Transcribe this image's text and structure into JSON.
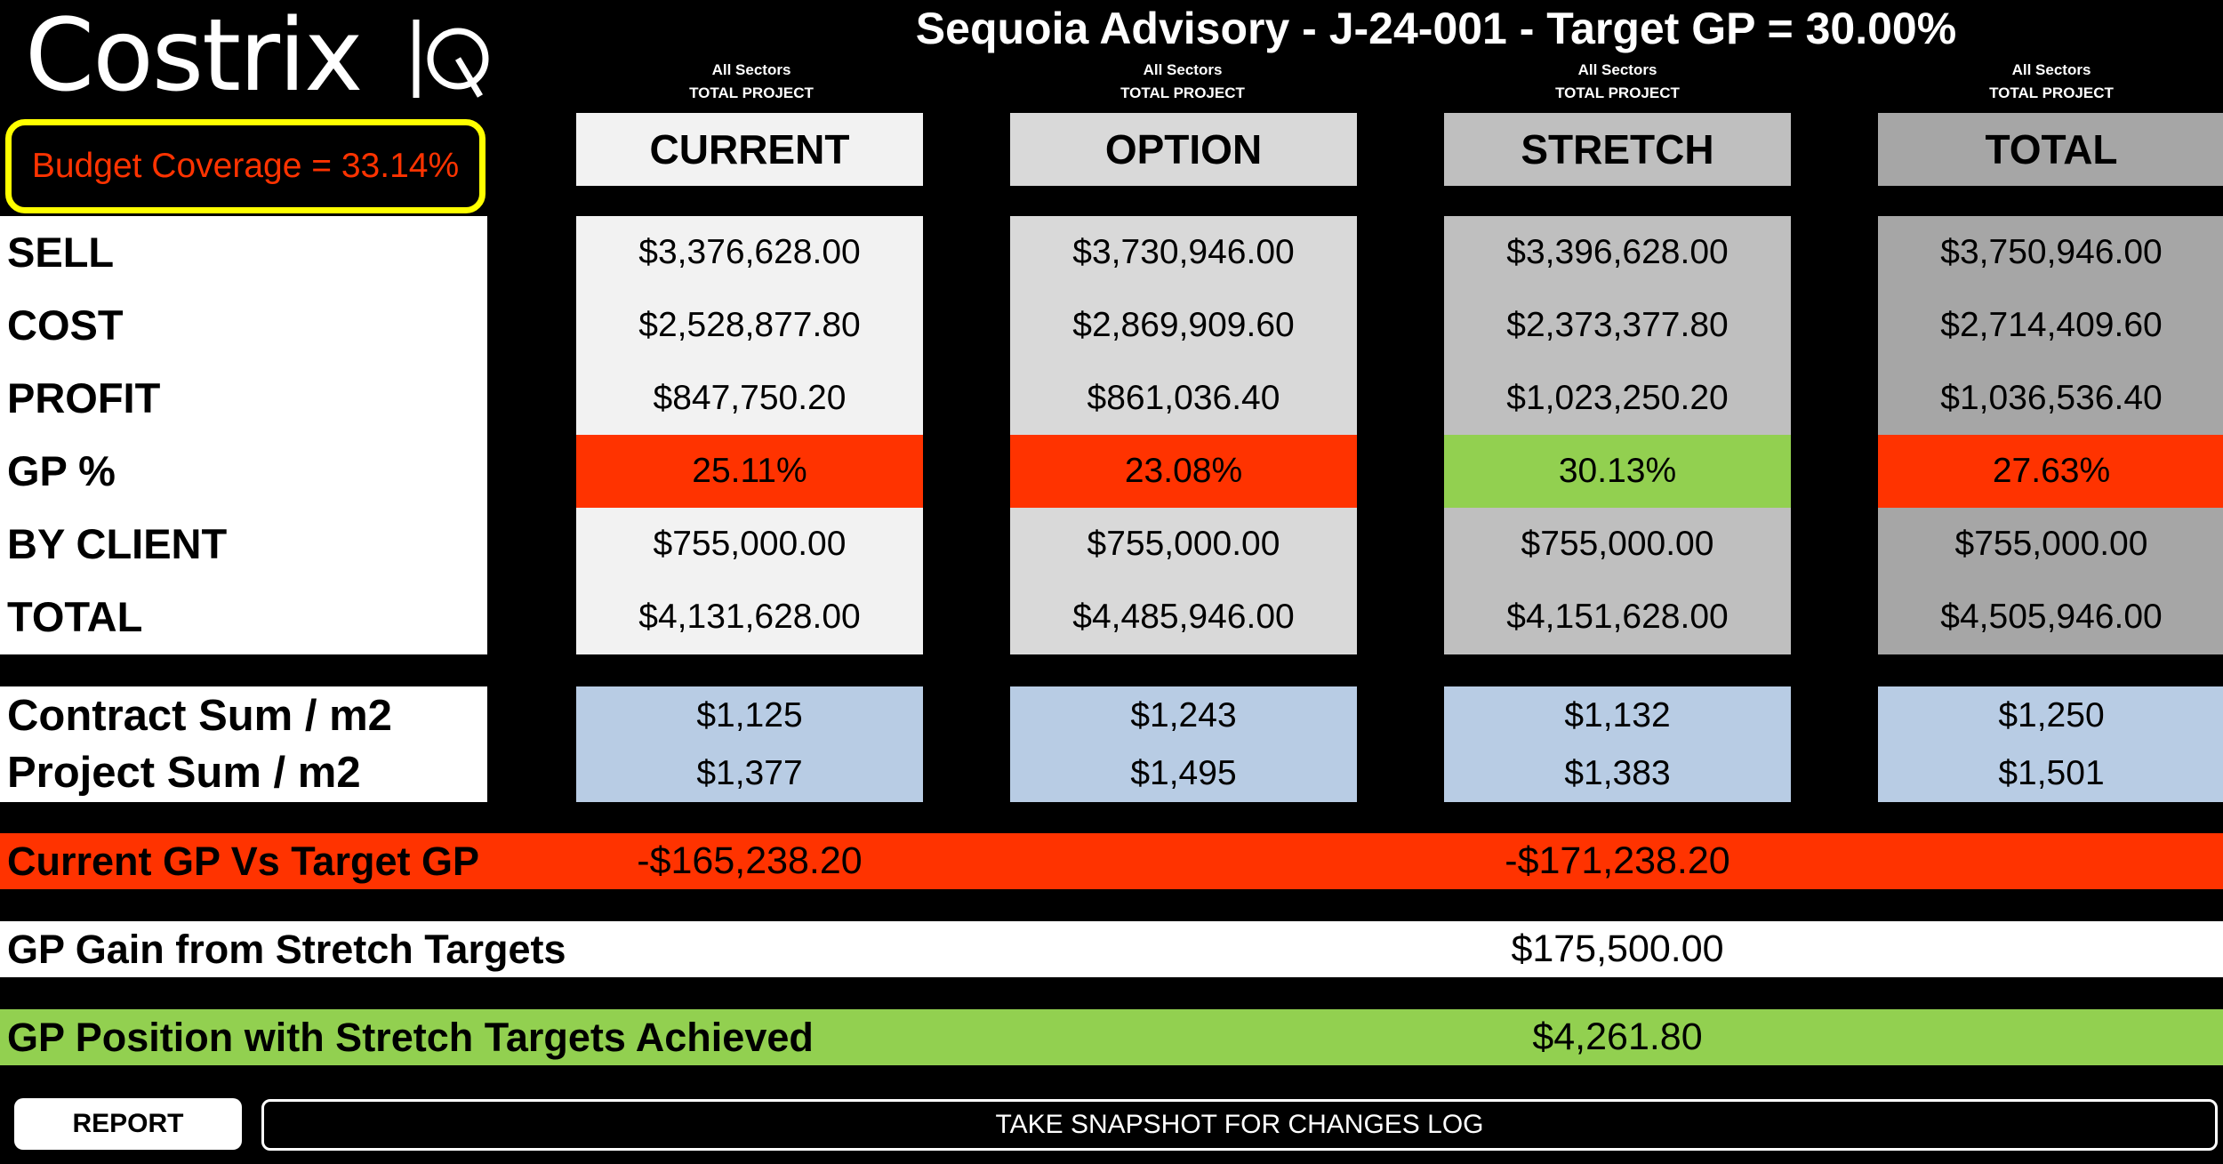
{
  "logo": {
    "text": "CostrixIQ"
  },
  "title": "Sequoia Advisory - J-24-001 - Target GP = 30.00%",
  "budget_coverage": "Budget Coverage = 33.14%",
  "columns": [
    {
      "sector": "All Sectors",
      "scope": "TOTAL PROJECT",
      "name": "CURRENT",
      "header_bg": "#f2f2f2",
      "body_bg": "#f2f2f2",
      "sell": "$3,376,628.00",
      "cost": "$2,528,877.80",
      "profit": "$847,750.20",
      "gp": "25.11%",
      "gp_bg": "#ff3300",
      "by_client": "$755,000.00",
      "total": "$4,131,628.00",
      "contract_sum": "$1,125",
      "project_sum": "$1,377"
    },
    {
      "sector": "All Sectors",
      "scope": "TOTAL PROJECT",
      "name": "OPTION",
      "header_bg": "#d9d9d9",
      "body_bg": "#d9d9d9",
      "sell": "$3,730,946.00",
      "cost": "$2,869,909.60",
      "profit": "$861,036.40",
      "gp": "23.08%",
      "gp_bg": "#ff3300",
      "by_client": "$755,000.00",
      "total": "$4,485,946.00",
      "contract_sum": "$1,243",
      "project_sum": "$1,495"
    },
    {
      "sector": "All Sectors",
      "scope": "TOTAL PROJECT",
      "name": "STRETCH",
      "header_bg": "#bfbfbf",
      "body_bg": "#bfbfbf",
      "sell": "$3,396,628.00",
      "cost": "$2,373,377.80",
      "profit": "$1,023,250.20",
      "gp": "30.13%",
      "gp_bg": "#92d050",
      "by_client": "$755,000.00",
      "total": "$4,151,628.00",
      "contract_sum": "$1,132",
      "project_sum": "$1,383"
    },
    {
      "sector": "All Sectors",
      "scope": "TOTAL PROJECT",
      "name": "TOTAL",
      "header_bg": "#a6a6a6",
      "body_bg": "#a6a6a6",
      "sell": "$3,750,946.00",
      "cost": "$2,714,409.60",
      "profit": "$1,036,536.40",
      "gp": "27.63%",
      "gp_bg": "#ff3300",
      "by_client": "$755,000.00",
      "total": "$4,505,946.00",
      "contract_sum": "$1,250",
      "project_sum": "$1,501"
    }
  ],
  "row_labels": {
    "sell": "SELL",
    "cost": "COST",
    "profit": "PROFIT",
    "gp": "GP %",
    "by_client": "BY CLIENT",
    "total": "TOTAL"
  },
  "sum_labels": {
    "contract": "Contract Sum / m2",
    "project": "Project Sum / m2"
  },
  "current_vs_target": {
    "label": "Current GP Vs Target GP",
    "current_value": "-$165,238.20",
    "stretch_value": "-$171,238.20",
    "bg": "#ff3300"
  },
  "gp_gain": {
    "label": "GP Gain from Stretch Targets",
    "value": "$175,500.00",
    "bg": "#ffffff"
  },
  "gp_position": {
    "label": "GP Position with Stretch Targets Achieved",
    "value": "$4,261.80",
    "bg": "#92d050"
  },
  "buttons": {
    "report": "REPORT",
    "snapshot": "TAKE SNAPSHOT FOR CHANGES LOG"
  }
}
